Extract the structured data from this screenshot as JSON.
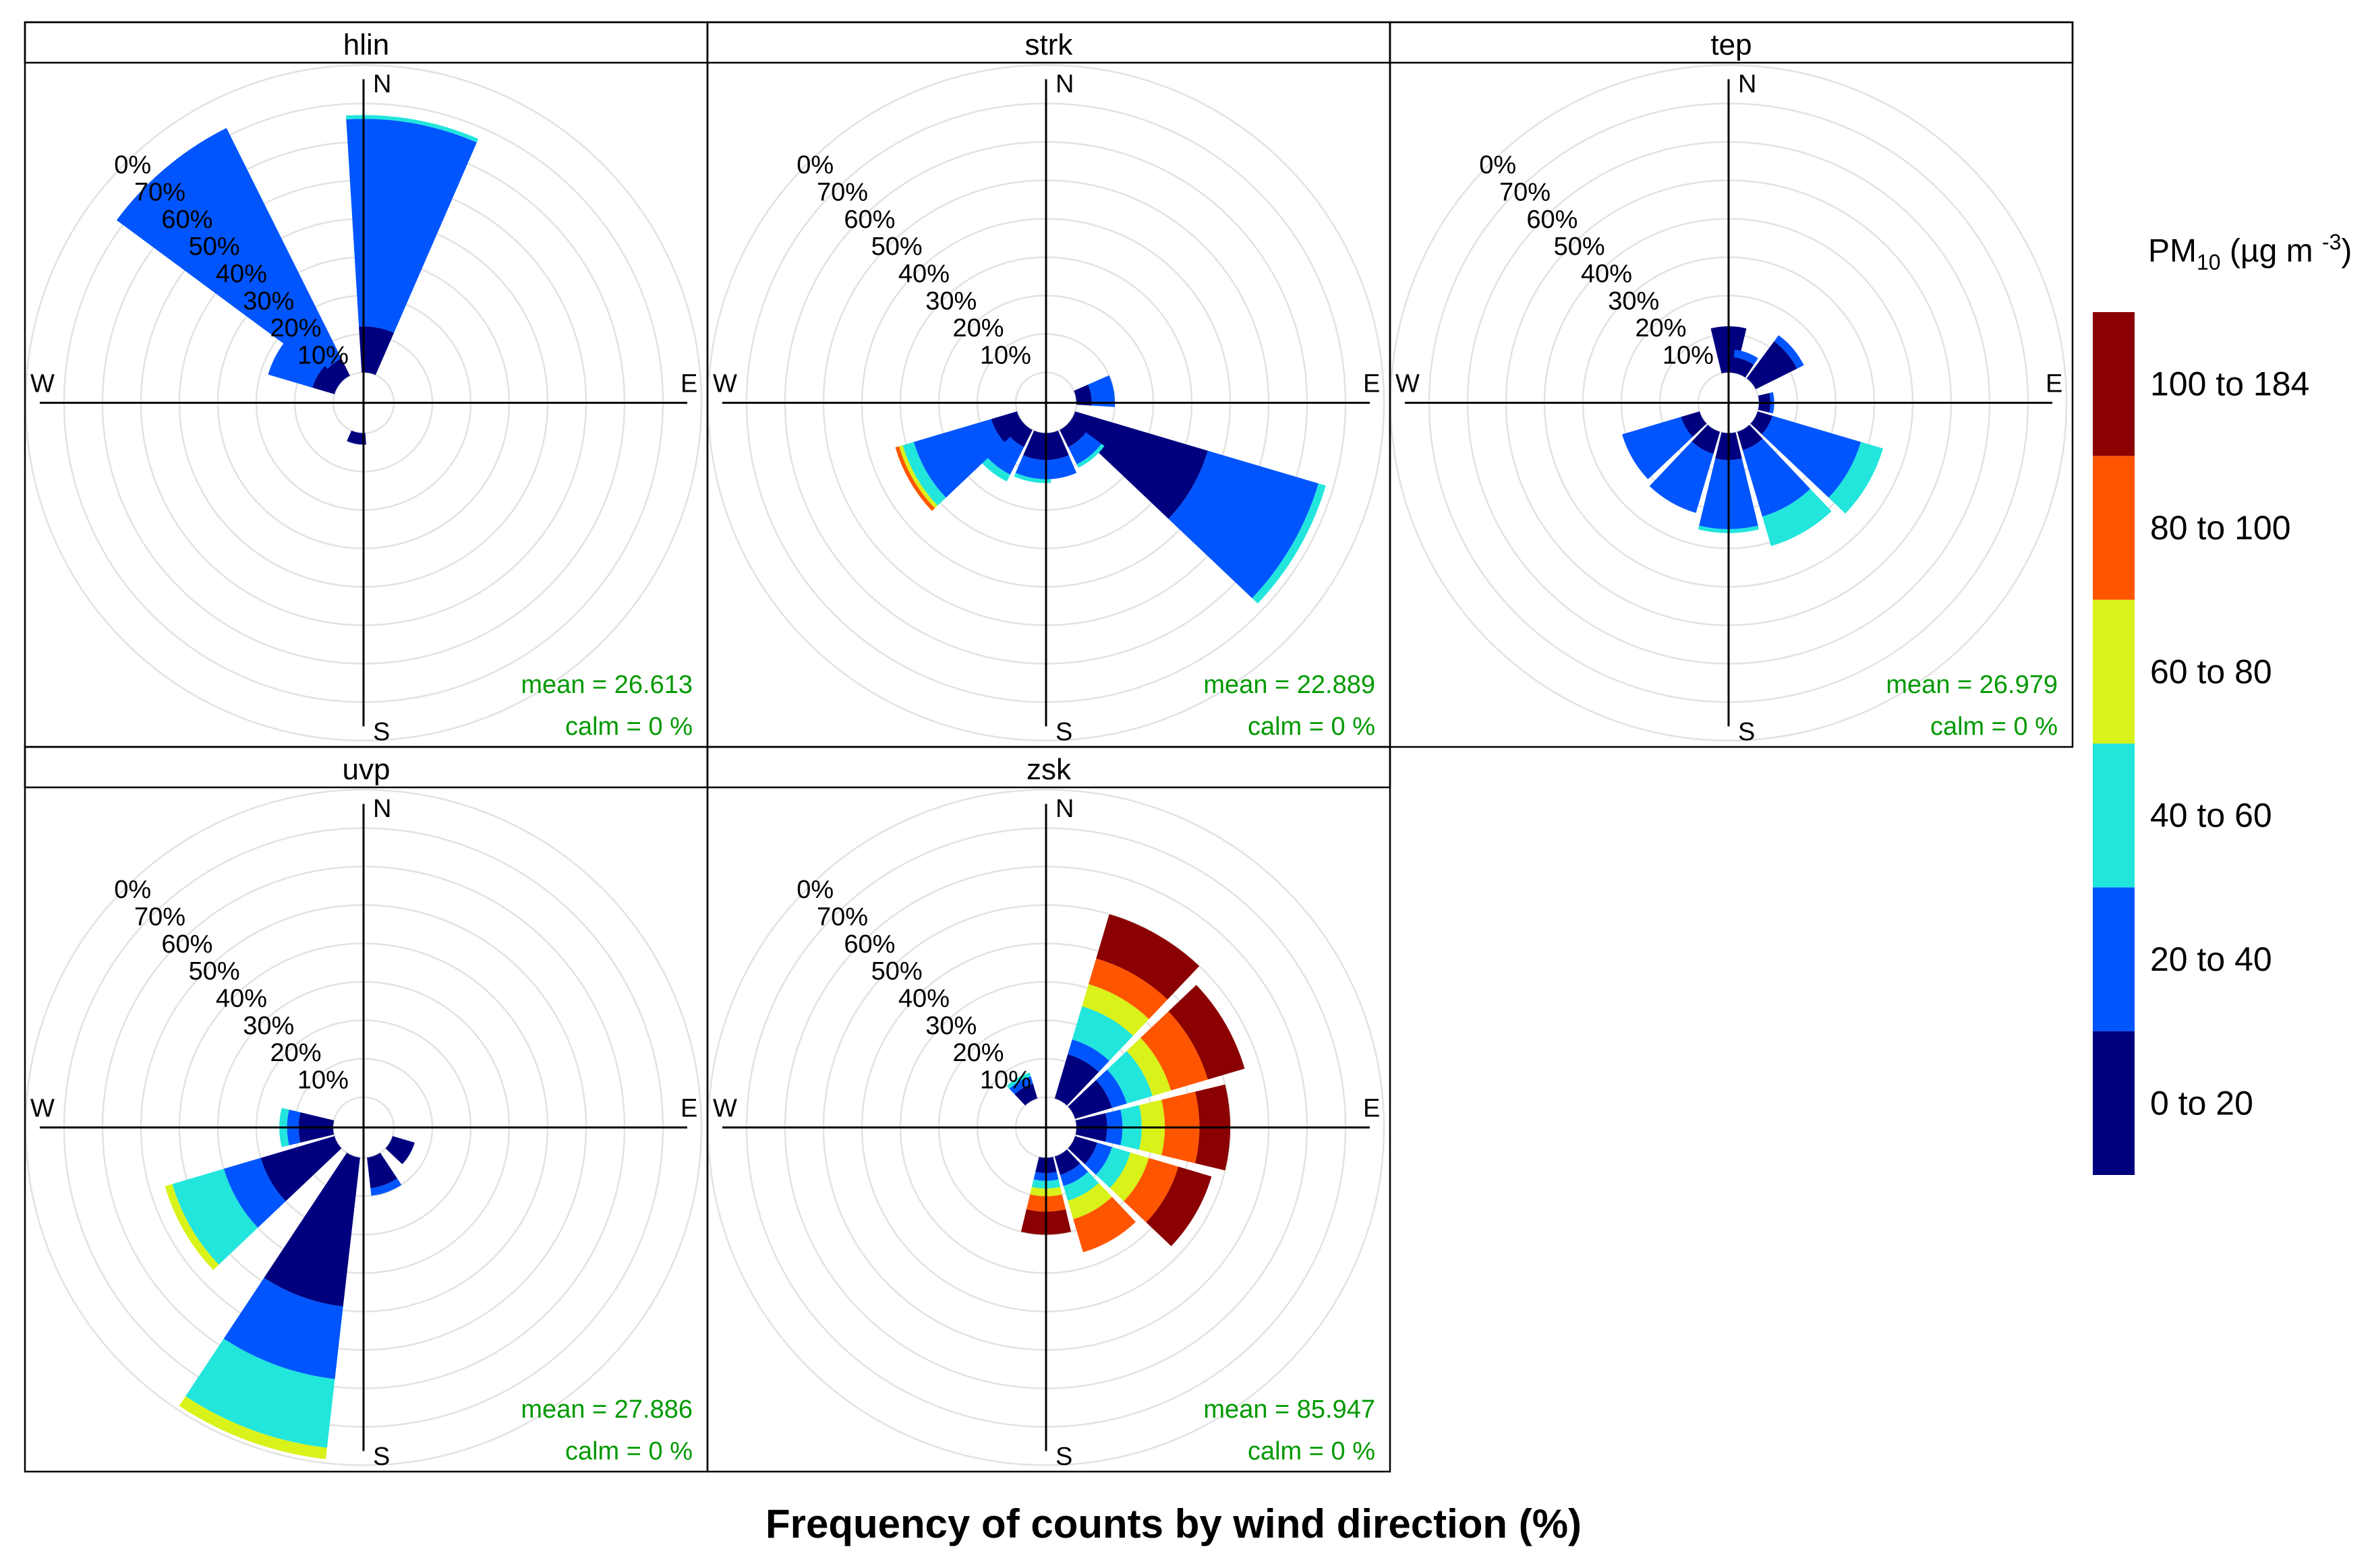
{
  "chart_data": {
    "type": "polar-frequency-windrose",
    "title": "Frequency of counts by wind direction (%)",
    "pollutant_label": "PM10 (µg m-3)",
    "pollutant_label_main": "PM",
    "pollutant_label_sub": "10",
    "pollutant_label_units": "(µg m",
    "pollutant_label_exp": "-3",
    "pollutant_label_close": ")",
    "ring_labels": [
      "10%",
      "20%",
      "30%",
      "40%",
      "50%",
      "60%",
      "70%"
    ],
    "edge_label": "0%",
    "compass_labels": [
      "N",
      "E",
      "S",
      "W"
    ],
    "rmax_percent": 80,
    "bins": [
      {
        "label": "0 to 20",
        "color": "#00007f"
      },
      {
        "label": "20 to 40",
        "color": "#0055ff"
      },
      {
        "label": "40 to 60",
        "color": "#22e5dc"
      },
      {
        "label": "60 to 80",
        "color": "#d9f21a"
      },
      {
        "label": "80 to 100",
        "color": "#ff5500"
      },
      {
        "label": "100 to 184",
        "color": "#8b0000"
      }
    ],
    "stat_color": "#009900",
    "panels": [
      {
        "name": "hlin",
        "mean_label": "mean = ",
        "mean": "26.613",
        "calm_label": "calm = ",
        "calm": "0 %",
        "sectors": [
          {
            "dir": 10,
            "cum": [
              12,
              66,
              67
            ]
          },
          {
            "dir": 320,
            "cum": [
              5,
              72
            ]
          },
          {
            "dir": 300,
            "cum": [
              6,
              18
            ]
          },
          {
            "dir": 190,
            "cum": [
              3
            ]
          }
        ]
      },
      {
        "name": "strk",
        "mean_label": "mean = ",
        "mean": "22.889",
        "calm_label": "calm = ",
        "calm": "0 %",
        "sectors": [
          {
            "dir": 80,
            "cum": [
              4,
              10
            ]
          },
          {
            "dir": 120,
            "cum": [
              36,
              66,
              68
            ]
          },
          {
            "dir": 140,
            "cum": [
              5,
              10,
              11
            ]
          },
          {
            "dir": 170,
            "cum": [
              7,
              12
            ]
          },
          {
            "dir": 190,
            "cum": [
              7,
              12,
              13
            ]
          },
          {
            "dir": 220,
            "cum": [
              5,
              13,
              15
            ]
          },
          {
            "dir": 240,
            "cum": [
              7,
              28,
              31,
              32,
              33
            ]
          }
        ]
      },
      {
        "name": "tep",
        "mean_label": "mean = ",
        "mean": "26.979",
        "calm_label": "calm = ",
        "calm": "0 %",
        "sectors": [
          {
            "dir": 0,
            "cum": [
              12
            ]
          },
          {
            "dir": 20,
            "cum": [
              4,
              6
            ]
          },
          {
            "dir": 50,
            "cum": [
              12,
              14
            ]
          },
          {
            "dir": 90,
            "cum": [
              3,
              4
            ]
          },
          {
            "dir": 120,
            "cum": [
              4,
              28,
              34
            ]
          },
          {
            "dir": 150,
            "cum": [
              5,
              23,
              31
            ]
          },
          {
            "dir": 180,
            "cum": [
              7,
              25,
              26
            ]
          },
          {
            "dir": 210,
            "cum": [
              6,
              22
            ]
          },
          {
            "dir": 240,
            "cum": [
              5,
              21
            ]
          }
        ]
      },
      {
        "name": "uvp",
        "mean_label": "mean = ",
        "mean": "27.886",
        "calm_label": "calm = ",
        "calm": "0 %",
        "sectors": [
          {
            "dir": 160,
            "cum": [
              8,
              10
            ]
          },
          {
            "dir": 200,
            "cum": [
              39,
              58,
              76,
              79
            ]
          },
          {
            "dir": 240,
            "cum": [
              20,
              30,
              44,
              46
            ]
          },
          {
            "dir": 270,
            "cum": [
              9,
              12,
              14
            ]
          },
          {
            "dir": 120,
            "cum": [
              6
            ]
          }
        ]
      },
      {
        "name": "zsk",
        "mean_label": "mean = ",
        "mean": "85.947",
        "calm_label": "calm = ",
        "calm": "0 %",
        "sectors": [
          {
            "dir": 30,
            "cum": [
              12,
              16,
              25,
              31,
              38,
              50
            ]
          },
          {
            "dir": 60,
            "cum": [
              10,
              14,
              21,
              26,
              36,
              46
            ]
          },
          {
            "dir": 90,
            "cum": [
              8,
              12,
              17,
              23,
              32,
              40
            ]
          },
          {
            "dir": 120,
            "cum": [
              6,
              10,
              15,
              20,
              28,
              37
            ]
          },
          {
            "dir": 150,
            "cum": [
              5,
              8,
              12,
              17,
              26
            ]
          },
          {
            "dir": 180,
            "cum": [
              4,
              6,
              8,
              10,
              14,
              20
            ]
          },
          {
            "dir": 330,
            "cum": [
              4,
              6,
              7
            ]
          }
        ]
      }
    ]
  }
}
